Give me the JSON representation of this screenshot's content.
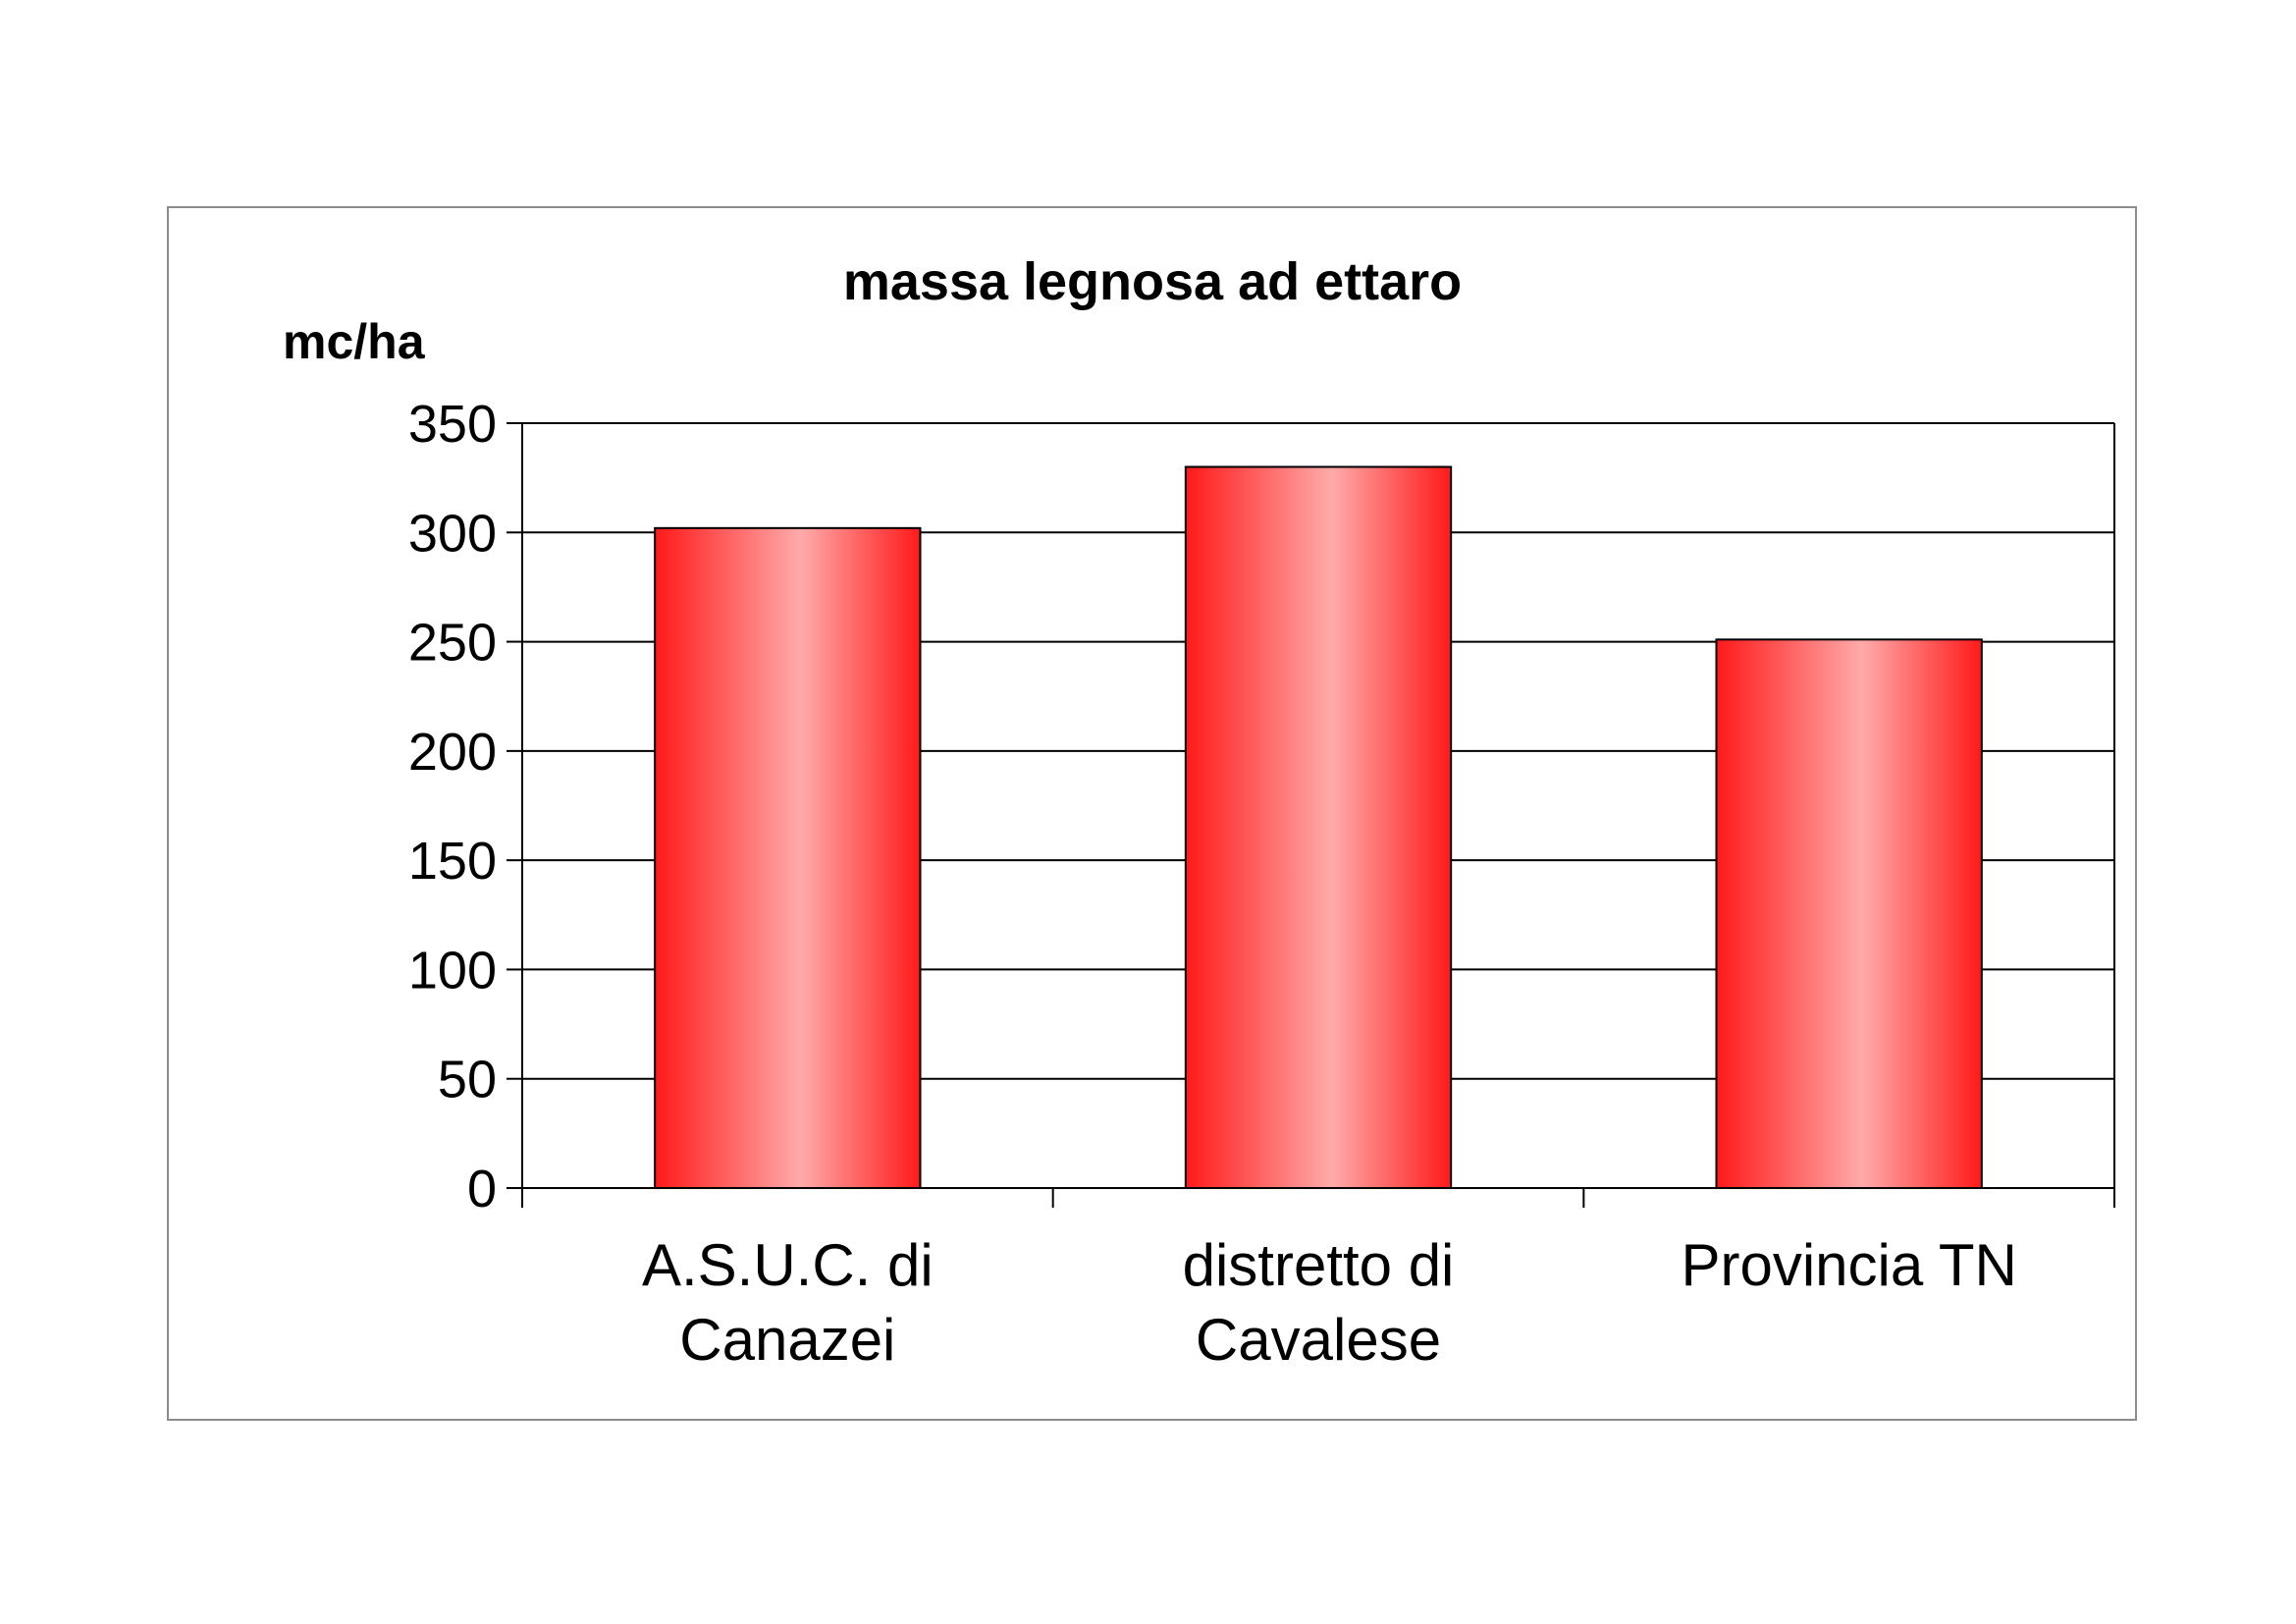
{
  "chart_data": {
    "type": "bar",
    "title": "massa legnosa ad ettaro",
    "ylabel": "mc/ha",
    "xlabel": "",
    "categories": [
      [
        "A.S.U.C. di",
        "Canazei"
      ],
      [
        "distretto di",
        "Cavalese"
      ],
      [
        "Provincia TN"
      ]
    ],
    "values": [
      302,
      330,
      251
    ],
    "ylim": [
      0,
      350
    ],
    "yticks": [
      0,
      50,
      100,
      150,
      200,
      250,
      300,
      350
    ],
    "grid": true,
    "legend": "none",
    "colors": {
      "bar_edge": "#ff1a1a",
      "bar_center": "#ffaaaa",
      "bar_outline": "#000000",
      "grid": "#000000"
    }
  }
}
